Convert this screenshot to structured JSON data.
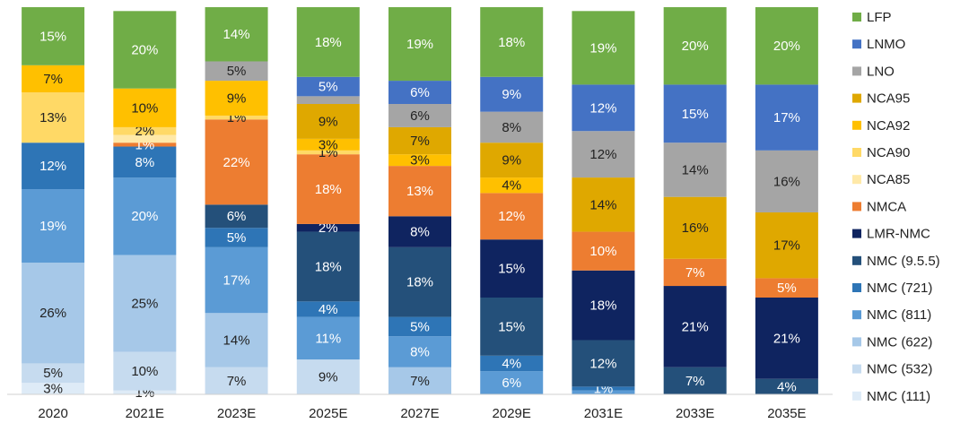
{
  "chart_data": {
    "type": "stacked_bar",
    "categories": [
      "2020",
      "2021E",
      "2023E",
      "2025E",
      "2027E",
      "2029E",
      "2031E",
      "2033E",
      "2035E"
    ],
    "ylim": [
      0,
      100
    ],
    "series": [
      {
        "name": "NMC (111)",
        "color": "#deebf7",
        "values": [
          3,
          1,
          0,
          0,
          0,
          0,
          0,
          0,
          0
        ],
        "value_labels": [
          "3%",
          "1%",
          null,
          null,
          null,
          null,
          null,
          null,
          null
        ]
      },
      {
        "name": "NMC (532)",
        "color": "#c6dbef",
        "values": [
          5,
          10,
          7,
          9,
          0,
          0,
          0,
          0,
          0
        ],
        "value_labels": [
          "5%",
          "10%",
          "7%",
          "9%",
          null,
          null,
          null,
          null,
          null
        ]
      },
      {
        "name": "NMC (622)",
        "color": "#a6c8e8",
        "values": [
          26,
          25,
          14,
          0,
          7,
          0,
          0,
          0,
          0
        ],
        "value_labels": [
          "26%",
          "25%",
          "14%",
          null,
          "7%",
          null,
          null,
          null,
          null
        ]
      },
      {
        "name": "NMC (811)",
        "color": "#5b9bd5",
        "values": [
          19,
          20,
          17,
          11,
          8,
          6,
          1,
          0,
          0
        ],
        "value_labels": [
          "19%",
          "20%",
          "17%",
          "11%",
          "8%",
          "6%",
          null,
          null,
          null
        ]
      },
      {
        "name": "NMC (721)",
        "color": "#2e75b6",
        "values": [
          12,
          8,
          5,
          4,
          5,
          4,
          1,
          0,
          0
        ],
        "value_labels": [
          "12%",
          "8%",
          "5%",
          "4%",
          "5%",
          "4%",
          "1%",
          null,
          null
        ]
      },
      {
        "name": "NMC (9.5.5)",
        "color": "#24507a",
        "values": [
          0,
          0,
          6,
          18,
          18,
          15,
          12,
          7,
          4
        ],
        "value_labels": [
          null,
          null,
          "6%",
          "18%",
          "18%",
          "15%",
          "12%",
          "7%",
          "4%"
        ]
      },
      {
        "name": "LMR-NMC",
        "color": "#0f2460",
        "values": [
          0,
          0,
          0,
          2,
          8,
          15,
          18,
          21,
          21
        ],
        "value_labels": [
          null,
          null,
          null,
          "2%",
          "8%",
          "15%",
          "18%",
          "21%",
          "21%"
        ]
      },
      {
        "name": "NMCA",
        "color": "#ed7d31",
        "values": [
          0,
          1,
          22,
          18,
          13,
          12,
          10,
          7,
          5
        ],
        "value_labels": [
          null,
          "1%",
          "22%",
          "18%",
          "13%",
          "12%",
          "10%",
          "7%",
          "5%"
        ]
      },
      {
        "name": "NCA85",
        "color": "#ffe9a8",
        "values": [
          0,
          2,
          0,
          0,
          0,
          0,
          0,
          0,
          0
        ],
        "value_labels": [
          null,
          null,
          null,
          null,
          null,
          null,
          null,
          null,
          null
        ]
      },
      {
        "name": "NCA90",
        "color": "#ffd966",
        "values": [
          13,
          2,
          1,
          1,
          0,
          0,
          0,
          0,
          0
        ],
        "value_labels": [
          "13%",
          "2%",
          "1%",
          "1%",
          null,
          null,
          null,
          null,
          null
        ]
      },
      {
        "name": "NCA92",
        "color": "#ffc000",
        "values": [
          7,
          10,
          9,
          3,
          3,
          4,
          0,
          0,
          0
        ],
        "value_labels": [
          "7%",
          "10%",
          "9%",
          "3%",
          "3%",
          "4%",
          null,
          null,
          null
        ]
      },
      {
        "name": "NCA95",
        "color": "#dfa800",
        "values": [
          0,
          0,
          0,
          9,
          7,
          9,
          14,
          16,
          17
        ],
        "value_labels": [
          null,
          null,
          null,
          "9%",
          "7%",
          "9%",
          "14%",
          "16%",
          "17%"
        ]
      },
      {
        "name": "LNO",
        "color": "#a5a5a5",
        "values": [
          0,
          0,
          5,
          2,
          6,
          8,
          12,
          14,
          16
        ],
        "value_labels": [
          null,
          null,
          "5%",
          null,
          "6%",
          "8%",
          "12%",
          "14%",
          "16%"
        ]
      },
      {
        "name": "LNMO",
        "color": "#4472c4",
        "values": [
          0,
          0,
          0,
          5,
          6,
          9,
          12,
          15,
          17
        ],
        "value_labels": [
          null,
          null,
          null,
          "5%",
          "6%",
          "9%",
          "12%",
          "15%",
          "17%"
        ]
      },
      {
        "name": "LFP",
        "color": "#70ad47",
        "values": [
          15,
          20,
          14,
          18,
          19,
          18,
          19,
          20,
          20
        ],
        "value_labels": [
          "15%",
          "20%",
          "14%",
          "18%",
          "19%",
          "18%",
          "19%",
          "20%",
          "20%"
        ]
      }
    ]
  }
}
